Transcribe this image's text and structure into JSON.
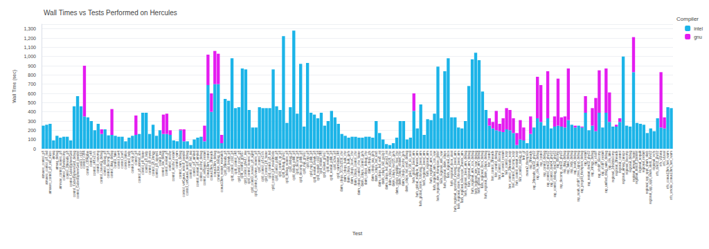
{
  "chart_data": {
    "type": "bar",
    "title": "Wall Times vs Tests Performed on Hercules",
    "x_label": "Test",
    "y_label": "Wall Time (sec)",
    "legend_title": "Compiler",
    "legend": "top-right",
    "stacked": true,
    "grid": true,
    "ylim": [
      0,
      1350
    ],
    "yticks": [
      0,
      100,
      200,
      300,
      400,
      500,
      600,
      700,
      800,
      900,
      1000,
      1100,
      1200,
      1300
    ],
    "categories": [
      "atmaero_control_p8",
      "atmaero_control_p8_rad",
      "atmaero_control_p8_rad_micro",
      "atmaq",
      "atmaq_debug",
      "atmwav_control_noaero_p8",
      "control_2dwrtdecomp",
      "control_2threads_p8",
      "control_CubedSphereGrid",
      "control_CubedSphereGrid_debug",
      "control_CubedSphereGrid_parallel",
      "control_c192",
      "control_c384",
      "control_c384gdas",
      "control_c48",
      "control_c48.v2.sfc",
      "control_csawmg",
      "control_csawmg_debug",
      "control_debug_p8",
      "control_decomp_p8",
      "control_diag_debug",
      "control_flake",
      "control_iovr4",
      "control_iovr5",
      "control_latlon",
      "control_lndp",
      "control_noqr_p8",
      "control_p8",
      "control_p8_atmlnd_sbs",
      "control_p8_faster",
      "control_p8_lndp",
      "control_p8_mynn",
      "control_p8_rrtmgp",
      "control_p8_ugwpv1",
      "control_ras",
      "control_ras_debug",
      "control_restart_p8",
      "control_stochy",
      "control_stochy_restart",
      "control_wam",
      "control_wam_debug",
      "control_wrtGauss_netcdf_parallel",
      "control_wrtGauss_netcdf_debug",
      "control_c48_lnd_iau",
      "control_p8_atmlnd",
      "control_restart_p8_atmlnd",
      "control_stochy_debug",
      "control_wrtGauss_restart",
      "conus13km_control",
      "conus13km_2threads",
      "conus13km_debug",
      "conus13km_debug_qr",
      "conus13km_restart_mismatch",
      "cpld_2threads_p8",
      "cpld_bmark_p8",
      "cpld_control_c192_p8",
      "cpld_control_c48",
      "cpld_control_ciceC_p8",
      "cpld_control_gfsv17",
      "cpld_control_gfsv17_iau",
      "cpld_control_noaero_p8",
      "cpld_control_noaero_p8_agrid",
      "cpld_control_nowave_noaero_p8",
      "cpld_control_p8",
      "cpld_control_p8.v2.sfc",
      "cpld_control_p8_faster",
      "cpld_control_p8_lnd",
      "cpld_control_p8_mixedmode",
      "cpld_control_pdlib_p8",
      "cpld_control_qr_p8",
      "cpld_debug_gfsv17",
      "cpld_debug_noaero_p8",
      "cpld_debug_p8",
      "cpld_debug_pdlib_p8",
      "cpld_decomp_p8",
      "cpld_decomp_pdlib_p8",
      "cpld_mpi_gfsv17",
      "cpld_mpi_p8",
      "cpld_mpi_pdlib_p8",
      "cpld_restart_bmark_p8",
      "cpld_restart_c192_p8",
      "cpld_restart_c48",
      "cpld_restart_gfsv17",
      "cpld_restart_p8",
      "cpld_restart_pdlib_p8",
      "cpld_s2sa_p8",
      "cpld_warmstart_c48",
      "datm_cdeps_3072x1536_cfsr",
      "datm_cdeps_bulk_cfsr",
      "datm_cdeps_bulk_gefs",
      "datm_cdeps_ciceC_cfsr",
      "datm_cdeps_control_cfsr",
      "datm_cdeps_control_cfsr_faster",
      "datm_cdeps_control_gefs",
      "datm_cdeps_debug_cfsr",
      "datm_cdeps_gfs",
      "datm_cdeps_iau_gefs",
      "datm_cdeps_lnd_era5",
      "datm_cdeps_lnd_era5_rst",
      "datm_cdeps_lnd_gswp3",
      "datm_cdeps_lnd_gswp3_rst",
      "datm_cdeps_mx025_cfsr",
      "datm_cdeps_mx025_gefs",
      "datm_cdeps_multiple_files_cfsr",
      "datm_cdeps_restart_cfsr",
      "datm_cdeps_stochy_gefs",
      "datm_cdeps_lnd_era5_debug",
      "gnv1_c96_no_nest",
      "hafs_global_1nest_atm",
      "hafs_global_multiple_4nests_atm",
      "hafs_global_storm_following_1nest_atm",
      "hafs_regional_1nest_atm",
      "hafs_regional_atm",
      "hafs_regional_atm_ocn",
      "hafs_regional_atm_ocn_wav",
      "hafs_regional_atm_thompson_gfdlsf",
      "hafs_regional_atm_wav",
      "hafs_regional_datm_cdeps",
      "hafs_regional_docn",
      "hafs_regional_docn_oisst",
      "hafs_regional_specified_moving_1nest_atm",
      "hafs_regional_storm_following_1nest_atm",
      "hafs_regional_telescopic_2nests_atm",
      "hafs_regional_1nest_atm_debug",
      "hafs_regional_atm_debug",
      "hafs_regional_atm_ocn_debug",
      "hafs_regional_atm_wav_debug",
      "hafs_global_1nest_atm_debug",
      "hafs_regional_docn_debug",
      "hafs_regional_datm_cdeps_debug",
      "hrrr_control",
      "hrrr_control_2threads",
      "hrrr_control_debug",
      "hrrr_control_decomp",
      "hrrr_control_restart",
      "hrrr_control_noqr",
      "hrrr_control_2threads_noqr",
      "hrrr_control_decomp_noqr",
      "hrrr_control_restart_noqr",
      "hrrr_control_debug_qr",
      "hrrr_gf",
      "merra2_thompson",
      "rap_2threads",
      "rap_2threads_dyn32_phy32",
      "rap_clm_lake_debug",
      "rap_control",
      "rap_control_debug",
      "rap_control_dyn32_phy32",
      "rap_control_dyn64_phy32",
      "rap_control_debug_dyn32_phy32",
      "rap_decomp",
      "rap_decomp_dyn32_phy32",
      "rap_diag_debug",
      "rap_flake_debug",
      "rap_lndp_debug",
      "rap_noah_debug",
      "rap_noah_sfcdiff_cires_ugwp_debug",
      "rap_progcld_thompson_debug",
      "rap_restart",
      "rap_restart_dyn32_phy32",
      "rap_rrtmgp_debug",
      "rap_sfcdiff",
      "rap_sfcdiff_decomp",
      "rap_sfcdiff_restart",
      "rap_unified_drag_suite_debug",
      "rap_clm_lake",
      "regional_2dwrtdecomp",
      "regional_2threads",
      "regional_control",
      "regional_atmaq_canopy",
      "regional_decomp",
      "regional_debug",
      "regional_atmaq_faster",
      "regional_netcdf_parallel",
      "regional_noquilt",
      "regional_restart",
      "regional_spp_sppt_shum_skeb",
      "regional_spp_sppt_shum_skeb_dyn32",
      "regional_wofs",
      "rrfs_dyn32_phy32",
      "rrfs_v1beta",
      "rrfs_v1nssl",
      "rrfs_conus13km_hrrr_warm",
      "rrfs_smoke_conus13km_hrrr_warm"
    ],
    "series": [
      {
        "name": "intel",
        "color": "#1cb4e8",
        "values": [
          250,
          260,
          270,
          90,
          140,
          120,
          130,
          130,
          90,
          460,
          570,
          460,
          350,
          340,
          300,
          200,
          270,
          160,
          210,
          145,
          150,
          140,
          130,
          130,
          80,
          120,
          140,
          150,
          160,
          390,
          390,
          160,
          260,
          140,
          200,
          160,
          160,
          150,
          90,
          80,
          200,
          80,
          80,
          40,
          100,
          120,
          130,
          80,
          690,
          400,
          700,
          700,
          60,
          540,
          520,
          980,
          440,
          450,
          870,
          860,
          420,
          230,
          230,
          450,
          440,
          440,
          440,
          860,
          460,
          420,
          1220,
          280,
          450,
          1280,
          380,
          920,
          240,
          930,
          390,
          370,
          330,
          390,
          250,
          300,
          410,
          340,
          270,
          160,
          140,
          120,
          130,
          130,
          120,
          120,
          130,
          130,
          120,
          300,
          170,
          100,
          50,
          40,
          60,
          120,
          300,
          300,
          100,
          120,
          410,
          220,
          480,
          150,
          320,
          310,
          380,
          890,
          330,
          840,
          980,
          340,
          340,
          230,
          220,
          300,
          680,
          970,
          1040,
          960,
          620,
          420,
          250,
          220,
          200,
          190,
          180,
          210,
          200,
          170,
          40,
          100,
          90,
          60,
          160,
          230,
          330,
          290,
          250,
          330,
          220,
          240,
          250,
          240,
          230,
          310,
          260,
          230,
          250,
          230,
          390,
          200,
          250,
          190,
          390,
          230,
          390,
          290,
          240,
          240,
          290,
          1000,
          250,
          240,
          830,
          280,
          270,
          260,
          170,
          220,
          190,
          330,
          230,
          220,
          450,
          440
        ]
      },
      {
        "name": "gnu",
        "color": "#e41cf0",
        "values": [
          null,
          null,
          null,
          null,
          null,
          null,
          null,
          null,
          null,
          null,
          null,
          null,
          550,
          null,
          null,
          null,
          null,
          50,
          null,
          null,
          280,
          null,
          null,
          null,
          null,
          null,
          null,
          210,
          null,
          null,
          null,
          null,
          null,
          null,
          null,
          210,
          220,
          50,
          null,
          null,
          10,
          130,
          null,
          null,
          null,
          null,
          null,
          170,
          330,
          200,
          360,
          330,
          90,
          null,
          null,
          null,
          null,
          null,
          null,
          null,
          null,
          null,
          null,
          null,
          null,
          null,
          null,
          null,
          null,
          null,
          null,
          null,
          null,
          null,
          null,
          null,
          null,
          null,
          null,
          null,
          null,
          null,
          null,
          null,
          null,
          null,
          null,
          null,
          null,
          null,
          null,
          null,
          null,
          null,
          null,
          null,
          null,
          null,
          null,
          null,
          null,
          null,
          null,
          null,
          null,
          null,
          null,
          null,
          190,
          null,
          null,
          null,
          null,
          null,
          null,
          null,
          null,
          null,
          null,
          null,
          null,
          null,
          null,
          null,
          null,
          null,
          null,
          null,
          null,
          null,
          80,
          70,
          210,
          80,
          150,
          230,
          220,
          160,
          130,
          210,
          140,
          null,
          190,
          null,
          450,
          400,
          null,
          510,
          null,
          110,
          510,
          100,
          120,
          560,
          null,
          20,
          null,
          10,
          180,
          null,
          190,
          360,
          460,
          null,
          480,
          320,
          null,
          20,
          40,
          null,
          null,
          null,
          380,
          null,
          null,
          null,
          null,
          null,
          null,
          null,
          600,
          120,
          null,
          null
        ]
      }
    ]
  }
}
